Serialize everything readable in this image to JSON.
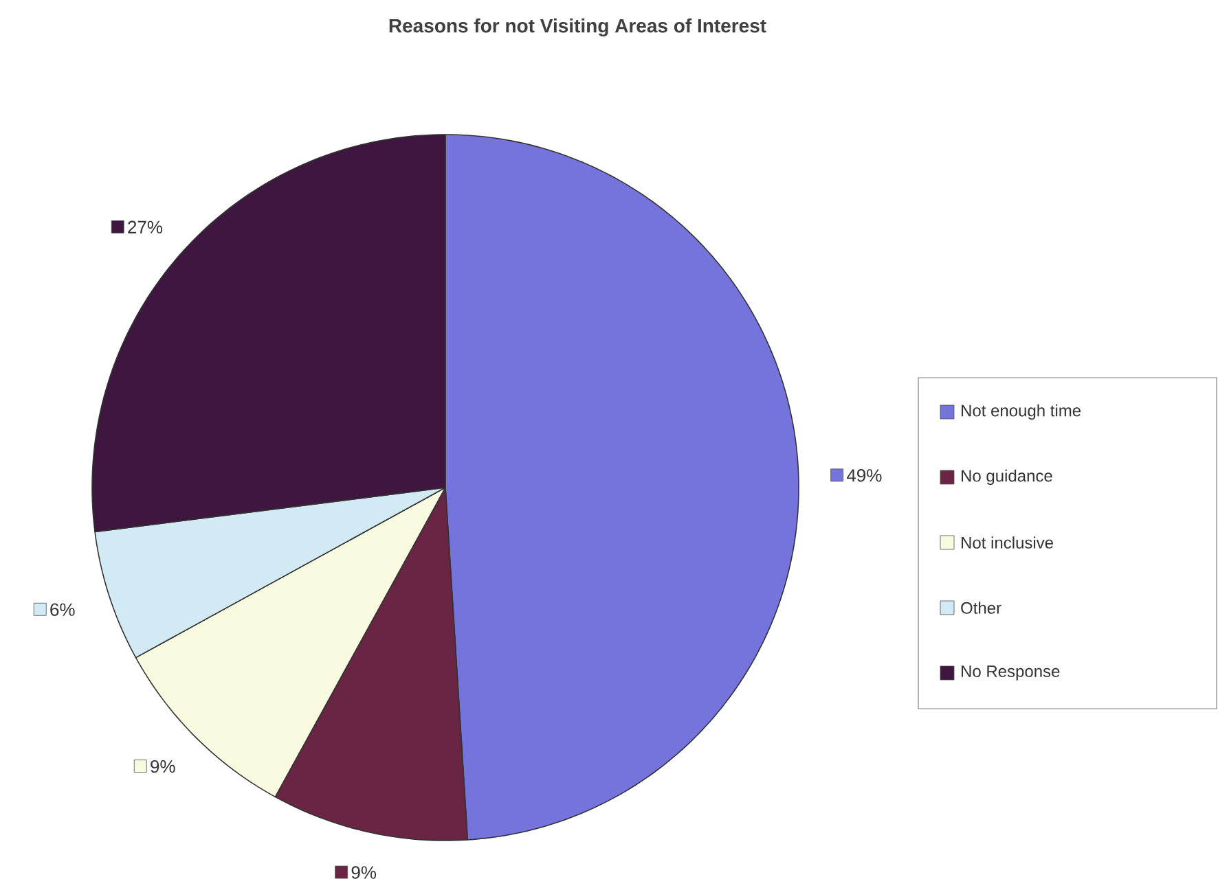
{
  "chart_data": {
    "type": "pie",
    "title": "Reasons for not Visiting Areas of Interest",
    "categories": [
      "Not enough time",
      "No guidance",
      "Not inclusive",
      "Other",
      "No Response"
    ],
    "values": [
      49,
      9,
      9,
      6,
      27
    ],
    "value_labels": [
      "49%",
      "9%",
      "9%",
      "6%",
      "27%"
    ],
    "colors": [
      "#7474dc",
      "#6a2444",
      "#fafae0",
      "#d2eaf4",
      "#3e1640"
    ],
    "legend": "right"
  }
}
